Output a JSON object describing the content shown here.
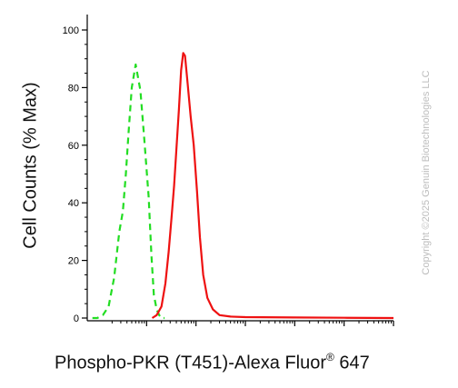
{
  "chart_data": {
    "type": "line",
    "title": "",
    "xlabel_main": "Phospho-PKR (T451)-Alexa Fluor",
    "xlabel_reg": "®",
    "xlabel_tail": " 647",
    "ylabel": "Cell Counts (% Max)",
    "x_scale": "log",
    "ylim": [
      0,
      100
    ],
    "yticks": [
      "0",
      "20",
      "40",
      "60",
      "80",
      "100"
    ],
    "grid": false,
    "series": [
      {
        "color": "#22dd22",
        "style": "dashed",
        "x": [
          0.08,
          0.1,
          0.13,
          0.17,
          0.22,
          0.28,
          0.33,
          0.38,
          0.43,
          0.5,
          0.6,
          0.75,
          0.9,
          1.1,
          1.25,
          1.4,
          1.6,
          1.8,
          2.0,
          2.3
        ],
        "y": [
          0,
          0,
          1,
          4,
          14,
          30,
          37,
          50,
          64,
          80,
          88,
          79,
          62,
          42,
          22,
          8,
          3,
          1,
          0,
          0
        ]
      },
      {
        "color": "#ee1111",
        "style": "solid",
        "x": [
          1.3,
          1.6,
          2.0,
          2.4,
          2.8,
          3.2,
          3.6,
          4.0,
          4.5,
          5.0,
          5.5,
          6.0,
          6.8,
          7.8,
          9.0,
          10.5,
          12.0,
          14.0,
          17.0,
          22.0,
          30.0,
          50.0,
          100.0,
          1000.0,
          10000.0,
          100000.0
        ],
        "y": [
          0,
          1,
          4,
          12,
          23,
          35,
          46,
          58,
          72,
          86,
          92,
          91,
          81,
          70,
          60,
          44,
          28,
          15,
          7,
          3,
          1,
          0.5,
          0.3,
          0.2,
          0.1,
          0
        ]
      }
    ]
  },
  "copyright": "Copyright ©2025 Genuin Biotechnologies LLC"
}
